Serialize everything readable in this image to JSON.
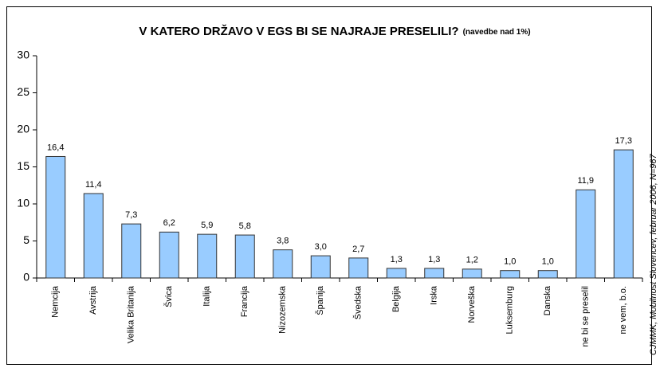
{
  "chart_data": {
    "type": "bar",
    "title": "V KATERO DRŽAVO V EGS BI SE NAJRAJE PRESELILI?",
    "subtitle": "(navedbe nad 1%)",
    "source": "CJMMK, Mobilnost Slovencev, februar 2006, N=967",
    "categories": [
      "Nemcija",
      "Avstrija",
      "Velika Britanija",
      "Švica",
      "Italija",
      "Francija",
      "Nizozemska",
      "Španija",
      "Švedska",
      "Belgija",
      "Irska",
      "Norveška",
      "Luksemburg",
      "Danska",
      "ne bi se preselil",
      "ne vem, b.o."
    ],
    "values": [
      16.4,
      11.4,
      7.3,
      6.2,
      5.9,
      5.8,
      3.8,
      3.0,
      2.7,
      1.3,
      1.3,
      1.2,
      1.0,
      1.0,
      11.9,
      17.3
    ],
    "value_labels": [
      "16,4",
      "11,4",
      "7,3",
      "6,2",
      "5,9",
      "5,8",
      "3,8",
      "3,0",
      "2,7",
      "1,3",
      "1,3",
      "1,2",
      "1,0",
      "1,0",
      "11,9",
      "17,3"
    ],
    "color": "#99ccff",
    "ylim": [
      0,
      30
    ],
    "yticks": [
      0,
      5,
      10,
      15,
      20,
      25,
      30
    ],
    "grid": false
  }
}
